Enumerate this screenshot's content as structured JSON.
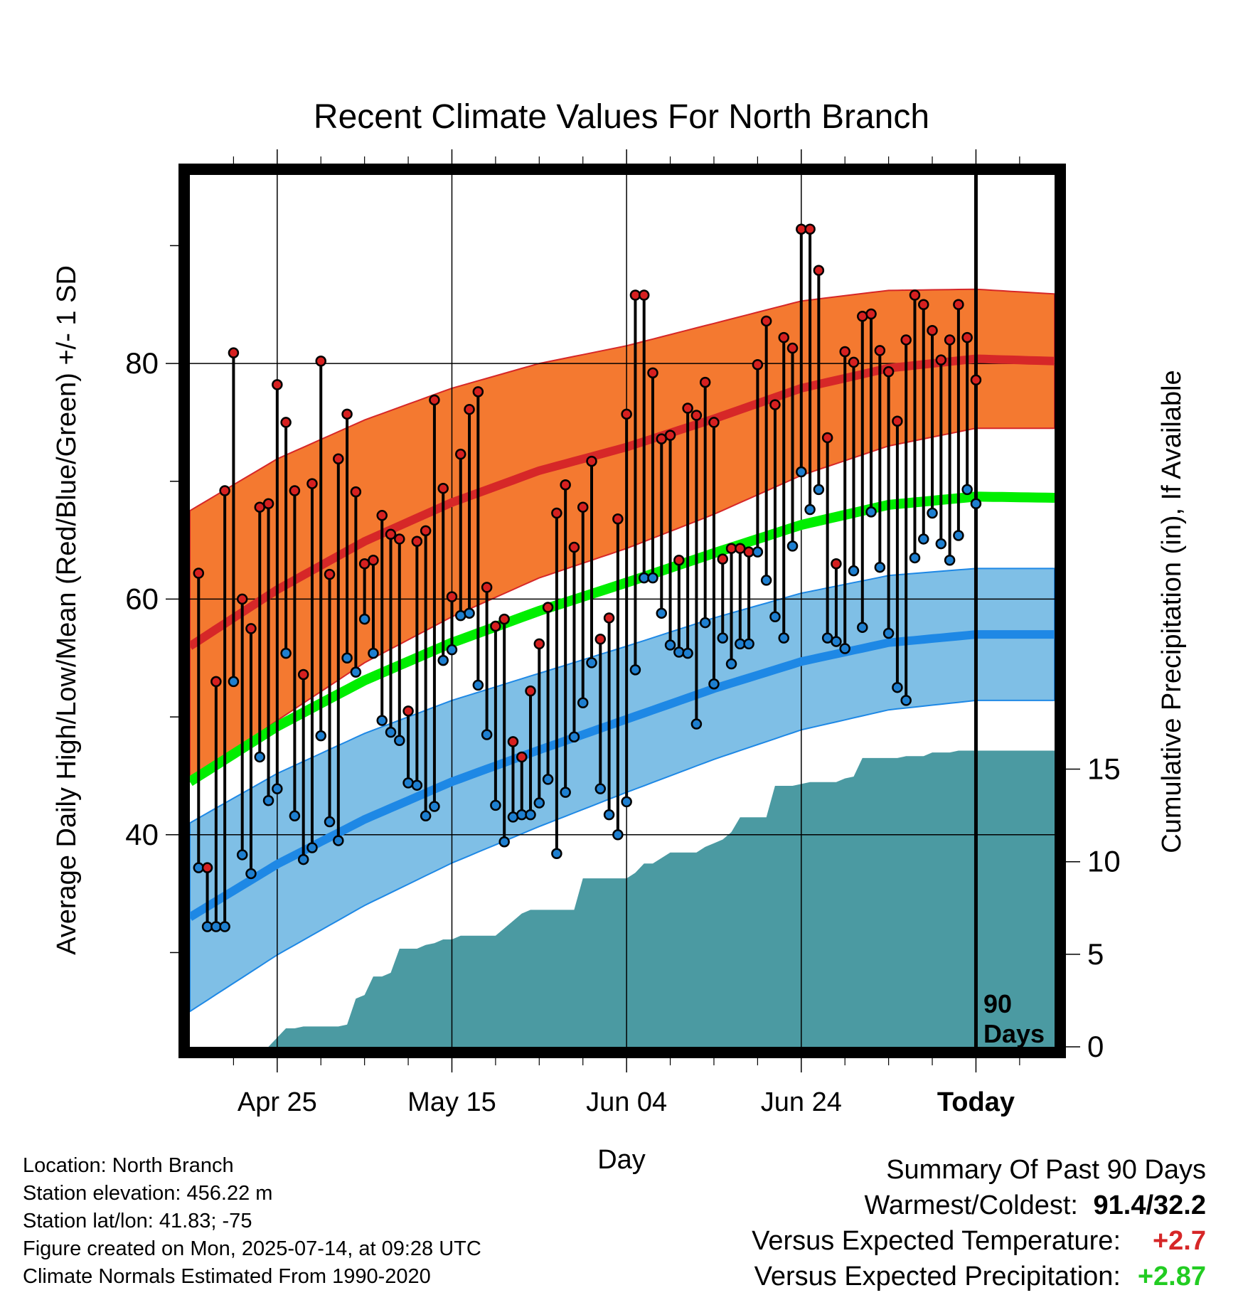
{
  "chart_data": {
    "type": "line",
    "title": "Recent Climate Values For North Branch",
    "xlabel": "Day",
    "ylabel": "Average Daily High/Low/Mean (Red/Blue/Green) +/- 1 SD",
    "y2label": "Cumulative Precipitation (in), If Available",
    "x_range_days": [
      -90,
      9
    ],
    "ylim": [
      22,
      96
    ],
    "y2lim": [
      0,
      47.1
    ],
    "yticks": [
      40,
      60,
      80
    ],
    "y2ticks": [
      0,
      5,
      10,
      15
    ],
    "xticks": [
      {
        "day": -80,
        "label": "Apr 25"
      },
      {
        "day": -60,
        "label": "May 15"
      },
      {
        "day": -40,
        "label": "Jun 04"
      },
      {
        "day": -20,
        "label": "Jun 24"
      },
      {
        "day": 0,
        "label": "Today"
      }
    ],
    "today_marker_label": "90 Days",
    "grid": true,
    "colors": {
      "high_band": "#f47930",
      "high_mean": "#d62728",
      "low_band": "#7fbfe6",
      "low_mean": "#1e88e5",
      "mean_line": "#00ee00",
      "precip": "#4b9aa2",
      "high_dot": "#d62020",
      "low_dot": "#1e7fd0"
    },
    "normals": {
      "days": [
        -90,
        -80,
        -70,
        -60,
        -50,
        -40,
        -30,
        -20,
        -10,
        0,
        9
      ],
      "high_mean": [
        56.0,
        60.8,
        64.9,
        68.2,
        70.9,
        72.9,
        75.3,
        77.9,
        79.6,
        80.4,
        80.2
      ],
      "high_sd": [
        11.5,
        11.1,
        10.3,
        9.7,
        9.1,
        8.6,
        8.1,
        7.4,
        6.6,
        5.9,
        5.7
      ],
      "low_mean": [
        33.0,
        37.5,
        41.3,
        44.5,
        47.2,
        49.8,
        52.4,
        54.7,
        56.3,
        57.0,
        57.0
      ],
      "low_sd": [
        8.0,
        7.7,
        7.3,
        6.9,
        6.5,
        6.2,
        6.0,
        5.8,
        5.7,
        5.6,
        5.6
      ],
      "mean": [
        44.5,
        49.2,
        53.1,
        56.3,
        59.0,
        61.4,
        63.9,
        66.3,
        68.0,
        68.7,
        68.6
      ]
    },
    "daily": {
      "start_day": -89,
      "high": [
        62.2,
        37.2,
        53.0,
        69.2,
        80.9,
        60.0,
        57.5,
        67.8,
        68.1,
        78.2,
        75.0,
        69.2,
        53.6,
        69.8,
        80.2,
        62.1,
        71.9,
        75.7,
        69.1,
        63.0,
        63.3,
        67.1,
        65.5,
        65.1,
        50.5,
        64.9,
        65.8,
        76.9,
        69.4,
        60.2,
        72.3,
        76.1,
        77.6,
        61.0,
        57.7,
        58.3,
        47.9,
        46.6,
        52.2,
        56.2,
        59.3,
        67.3,
        69.7,
        64.4,
        67.8,
        71.7,
        56.6,
        58.4,
        66.8,
        75.7,
        85.8,
        85.8,
        79.2,
        73.6,
        73.9,
        63.3,
        76.2,
        75.6,
        78.4,
        75.0,
        63.4,
        64.3,
        64.3,
        64.0,
        79.9,
        83.6,
        76.5,
        82.2,
        81.3,
        91.4,
        91.4,
        87.9,
        73.7,
        63.0,
        81.0,
        80.1,
        84.0,
        84.2,
        81.1,
        79.3,
        75.1,
        82.0,
        85.8,
        85.0,
        82.8,
        80.3,
        82.0,
        85.0,
        82.2,
        78.6
      ],
      "low": [
        37.2,
        32.2,
        32.2,
        32.2,
        53.0,
        38.3,
        36.7,
        46.6,
        42.9,
        43.9,
        55.4,
        41.6,
        37.9,
        38.9,
        48.4,
        41.1,
        39.5,
        55.0,
        53.8,
        58.3,
        55.4,
        49.7,
        48.7,
        48.0,
        44.4,
        44.2,
        41.6,
        42.4,
        54.8,
        55.7,
        58.6,
        58.8,
        52.7,
        48.5,
        42.5,
        39.4,
        41.5,
        41.7,
        41.7,
        42.7,
        44.7,
        38.4,
        43.6,
        48.3,
        51.2,
        54.6,
        43.9,
        41.7,
        40.0,
        42.8,
        54.0,
        61.8,
        61.8,
        58.8,
        56.1,
        55.5,
        55.4,
        49.4,
        58.0,
        52.8,
        56.7,
        54.5,
        56.2,
        56.2,
        64.0,
        61.6,
        58.5,
        56.7,
        64.5,
        70.8,
        67.6,
        69.3,
        56.7,
        56.4,
        55.8,
        62.4,
        57.6,
        67.4,
        62.7,
        57.1,
        52.5,
        51.4,
        63.5,
        65.1,
        67.3,
        64.7,
        63.3,
        65.4,
        69.3,
        68.1
      ]
    },
    "precip_cumulative": {
      "days": [
        -89,
        -81,
        -80,
        -79,
        -78,
        -77,
        -76,
        -75,
        -74,
        -73,
        -72,
        -71,
        -70,
        -69,
        -68,
        -67,
        -66,
        -65,
        -64,
        -63,
        -62,
        -61,
        -60,
        -59,
        -58,
        -57,
        -56,
        -55,
        -54,
        -53,
        -52,
        -51,
        -50,
        -49,
        -48,
        -47,
        -46,
        -45,
        -44,
        -43,
        -42,
        -41,
        -40,
        -39,
        -38,
        -37,
        -36,
        -35,
        -34,
        -33,
        -32,
        -31,
        -30,
        -29,
        -28,
        -27,
        -26,
        -25,
        -24,
        -23,
        -22,
        -21,
        -20,
        -19,
        -18,
        -17,
        -16,
        -15,
        -14,
        -13,
        -12,
        -11,
        -10,
        -9,
        -8,
        -7,
        -6,
        -5,
        -4,
        -3,
        -2,
        -1,
        0,
        9
      ],
      "values": [
        0.0,
        0.0,
        0.5,
        1.0,
        1.0,
        1.1,
        1.1,
        1.1,
        1.1,
        1.1,
        1.2,
        2.6,
        2.8,
        3.8,
        3.8,
        4.0,
        5.3,
        5.3,
        5.3,
        5.5,
        5.6,
        5.8,
        5.8,
        6.0,
        6.0,
        6.0,
        6.0,
        6.0,
        6.4,
        6.8,
        7.2,
        7.4,
        7.4,
        7.4,
        7.4,
        7.4,
        7.4,
        9.1,
        9.1,
        9.1,
        9.1,
        9.1,
        9.1,
        9.4,
        9.9,
        9.9,
        10.2,
        10.5,
        10.5,
        10.5,
        10.5,
        10.8,
        11.0,
        11.2,
        11.6,
        12.4,
        12.4,
        12.4,
        12.4,
        14.1,
        14.1,
        14.1,
        14.2,
        14.3,
        14.3,
        14.3,
        14.3,
        14.5,
        14.6,
        15.6,
        15.6,
        15.6,
        15.6,
        15.6,
        15.7,
        15.7,
        15.7,
        15.9,
        15.9,
        15.9,
        16.0,
        16.0,
        16.0,
        16.0
      ]
    }
  },
  "footer": {
    "location": "Location: North Branch",
    "elevation": "Station elevation: 456.22 m",
    "latlon": "Station lat/lon: 41.83; -75",
    "created": "Figure created on Mon, 2025-07-14, at 09:28 UTC",
    "normals_note": "Climate Normals Estimated From 1990-2020"
  },
  "summary": {
    "title": "Summary Of Past 90 Days",
    "warmest_label": "Warmest/Coldest:",
    "warmest_value": "91.4/32.2",
    "temp_label": "Versus Expected Temperature:",
    "temp_value": "+2.7",
    "temp_color": "#d62728",
    "precip_label": "Versus Expected Precipitation:",
    "precip_value": "+2.87",
    "precip_color": "#22cc22"
  }
}
